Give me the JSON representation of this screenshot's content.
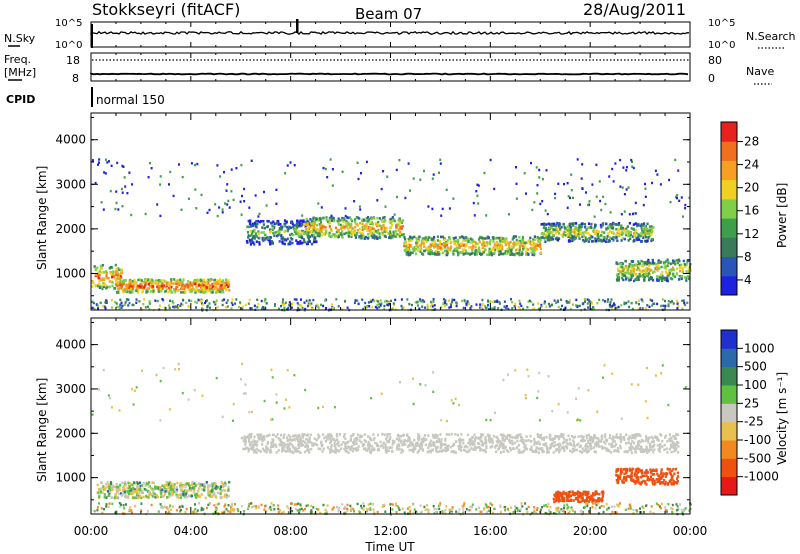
{
  "header": {
    "station": "Stokkseyri (fitACF)",
    "beam": "Beam 07",
    "date": "28/Aug/2011"
  },
  "noise_panel": {
    "left_label": "N.Sky",
    "right_label": "N.Search",
    "left_ticks": [
      "10^5",
      "10^0"
    ],
    "right_ticks": [
      "10^5",
      "10^0"
    ]
  },
  "freq_panel": {
    "left_label_top": "Freq.",
    "left_label_bottom": "[MHz]",
    "right_label": "Nave",
    "left_ticks": [
      "18",
      "8"
    ],
    "right_ticks": [
      "80",
      "0"
    ]
  },
  "cpid": {
    "label": "CPID",
    "value": "normal 150"
  },
  "x_axis": {
    "title": "Time UT",
    "ticks": [
      "00:00",
      "04:00",
      "08:00",
      "12:00",
      "16:00",
      "20:00",
      "00:00"
    ]
  },
  "power_panel": {
    "ylabel": "Slant Range [km]",
    "yticks": [
      "1000",
      "2000",
      "3000",
      "4000"
    ],
    "colorbar_label": "Power [dB]",
    "colorbar_ticks": [
      "4",
      "8",
      "12",
      "16",
      "20",
      "24",
      "28"
    ],
    "colors": [
      "#1e22e0",
      "#2a55b8",
      "#3a7a5a",
      "#3f9e4a",
      "#7fd048",
      "#f0d020",
      "#f5a020",
      "#f07020",
      "#e82020"
    ]
  },
  "velocity_panel": {
    "ylabel": "Slant Range [km]",
    "yticks": [
      "1000",
      "2000",
      "3000",
      "4000"
    ],
    "colorbar_label": "Velocity [m s⁻¹]",
    "colorbar_ticks": [
      "1000",
      "500",
      "100",
      "25",
      "-25",
      "-100",
      "-500",
      "-1000"
    ],
    "colors": [
      "#2030d0",
      "#2a6aa8",
      "#3a8a50",
      "#60c040",
      "#c8c8c0",
      "#e8c050",
      "#f08a20",
      "#f05010",
      "#e81818"
    ]
  },
  "chart_data": [
    {
      "type": "heatmap",
      "title": "Power",
      "xlabel": "Time UT",
      "ylabel": "Slant Range [km]",
      "xlim": [
        0,
        24
      ],
      "ylim": [
        180,
        4600
      ],
      "colorbar": {
        "label": "Power [dB]",
        "range": [
          0,
          30
        ]
      },
      "echo_bands": [
        {
          "t_start": 0.0,
          "t_end": 1.2,
          "range_center_km": 950,
          "range_width_km": 450,
          "mean_power_db": 24
        },
        {
          "t_start": 1.0,
          "t_end": 5.5,
          "range_center_km": 750,
          "range_width_km": 250,
          "mean_power_db": 27
        },
        {
          "t_start": 6.2,
          "t_end": 9.0,
          "range_center_km": 1950,
          "range_width_km": 450,
          "mean_power_db": 14
        },
        {
          "t_start": 8.5,
          "t_end": 12.5,
          "range_center_km": 2050,
          "range_width_km": 400,
          "mean_power_db": 22
        },
        {
          "t_start": 12.5,
          "t_end": 18.0,
          "range_center_km": 1650,
          "range_width_km": 350,
          "mean_power_db": 22
        },
        {
          "t_start": 18.0,
          "t_end": 22.5,
          "range_center_km": 1950,
          "range_width_km": 350,
          "mean_power_db": 18
        },
        {
          "t_start": 21.0,
          "t_end": 24.0,
          "range_center_km": 1100,
          "range_width_km": 400,
          "mean_power_db": 20
        }
      ]
    },
    {
      "type": "heatmap",
      "title": "Velocity",
      "xlabel": "Time UT",
      "ylabel": "Slant Range [km]",
      "xlim": [
        0,
        24
      ],
      "ylim": [
        180,
        4600
      ],
      "colorbar": {
        "label": "Velocity [m s⁻¹]",
        "range": [
          -1000,
          1000
        ]
      },
      "echo_bands": [
        {
          "t_start": 0.2,
          "t_end": 5.5,
          "range_center_km": 750,
          "range_width_km": 300,
          "mean_velocity_ms": 0
        },
        {
          "t_start": 6.0,
          "t_end": 23.5,
          "range_center_km": 1800,
          "range_width_km": 350,
          "mean_velocity_ms": 0
        },
        {
          "t_start": 18.5,
          "t_end": 20.5,
          "range_center_km": 600,
          "range_width_km": 200,
          "mean_velocity_ms": -500
        },
        {
          "t_start": 21.0,
          "t_end": 23.5,
          "range_center_km": 1050,
          "range_width_km": 300,
          "mean_velocity_ms": -500
        }
      ]
    }
  ]
}
